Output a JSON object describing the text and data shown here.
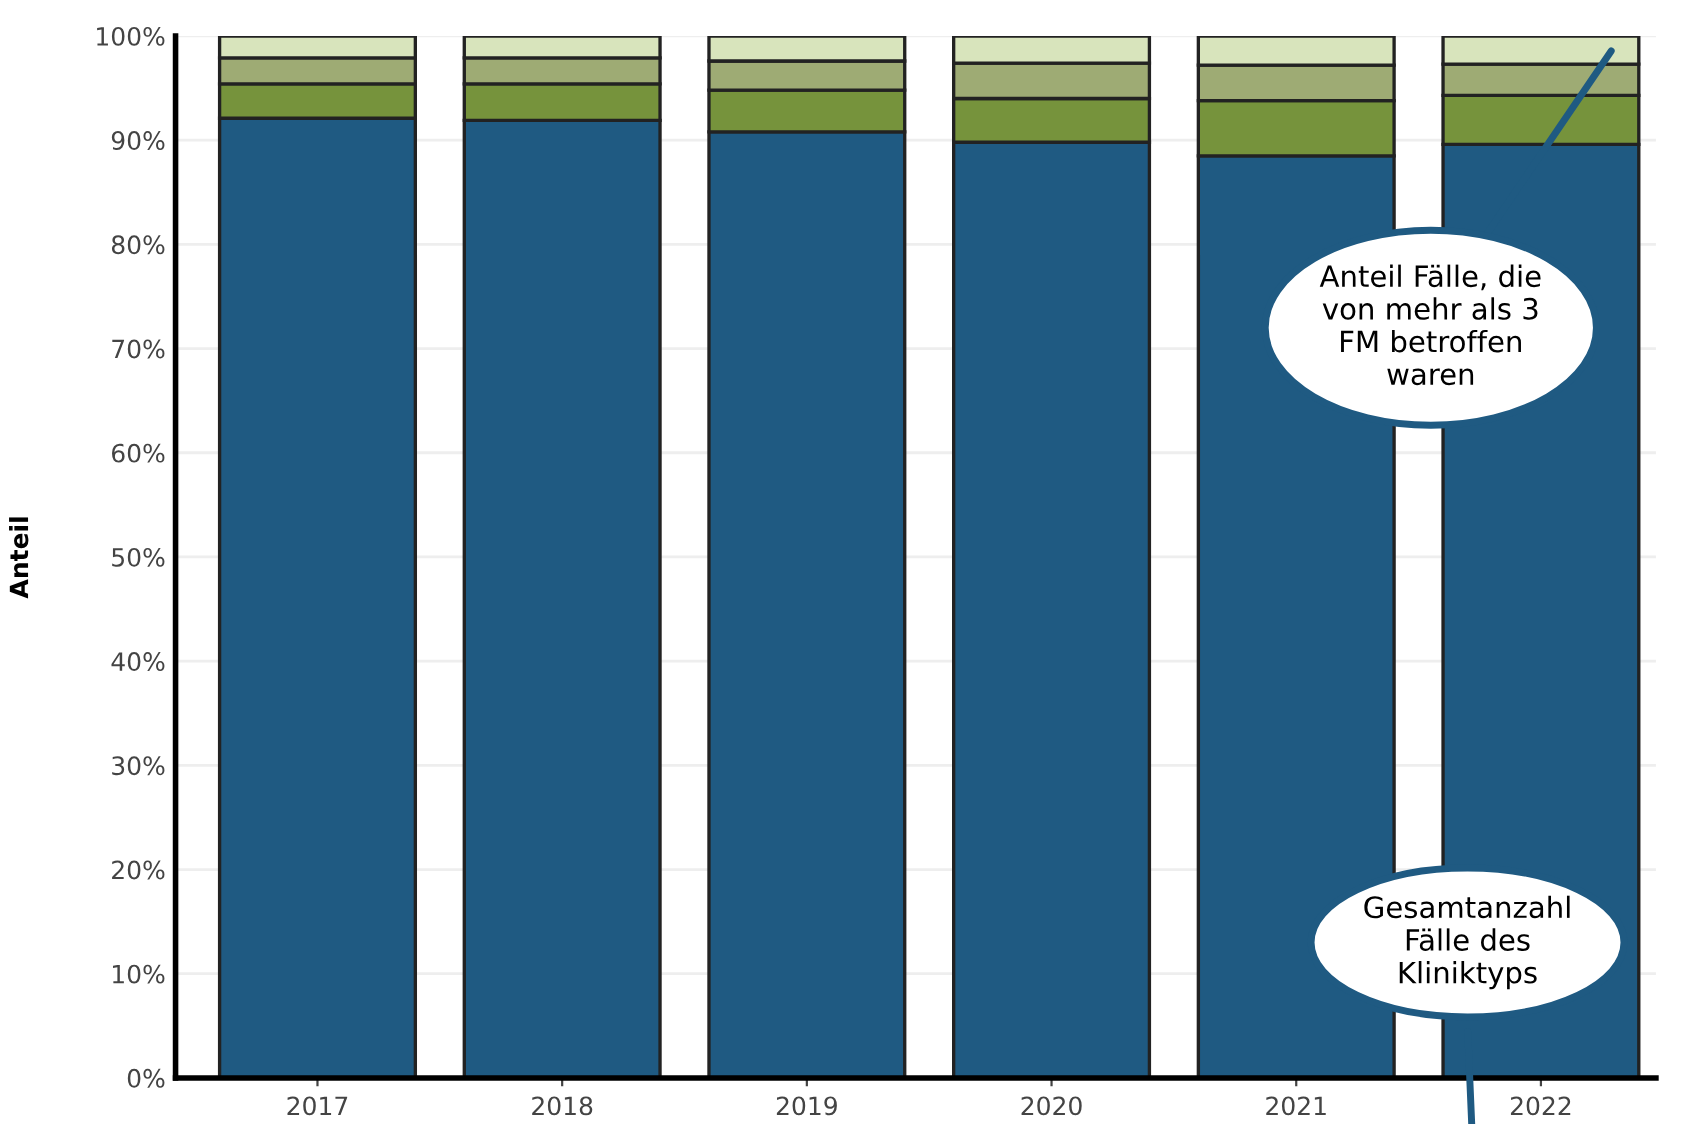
{
  "chart_data": {
    "type": "bar",
    "stacked": true,
    "ylabel": "Anteil",
    "categories": [
      "2017",
      "2018",
      "2019",
      "2020",
      "2021",
      "2022"
    ],
    "series": [
      {
        "color": "#1f5a82",
        "values": [
          92.1,
          91.9,
          90.8,
          89.8,
          88.5,
          89.6
        ]
      },
      {
        "color": "#76933c",
        "values": [
          3.3,
          3.5,
          4.0,
          4.2,
          5.3,
          4.7
        ]
      },
      {
        "color": "#9eab74",
        "values": [
          2.5,
          2.5,
          2.8,
          3.4,
          3.4,
          3.0
        ]
      },
      {
        "color": "#d8e4bc",
        "values": [
          2.1,
          2.1,
          2.4,
          2.6,
          2.8,
          2.7
        ]
      }
    ],
    "ylim": [
      0,
      100
    ],
    "yticks": [
      {
        "value": 0,
        "label": "0%"
      },
      {
        "value": 10,
        "label": "10%"
      },
      {
        "value": 20,
        "label": "20%"
      },
      {
        "value": 30,
        "label": "30%"
      },
      {
        "value": 40,
        "label": "40%"
      },
      {
        "value": 50,
        "label": "50%"
      },
      {
        "value": 60,
        "label": "60%"
      },
      {
        "value": 70,
        "label": "70%"
      },
      {
        "value": 80,
        "label": "80%"
      },
      {
        "value": 90,
        "label": "90%"
      },
      {
        "value": 100,
        "label": "100%"
      }
    ],
    "grid": "y",
    "legend": false,
    "annotations": [
      "Anteil Fälle, die\nvon mehr als 3\nFM betroffen\nwaren",
      "Gesamtanzahl\nFälle des\nKliniktyps"
    ]
  }
}
